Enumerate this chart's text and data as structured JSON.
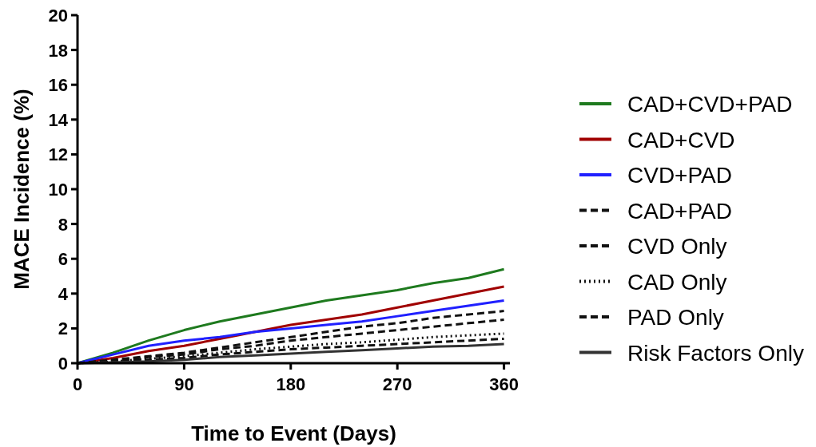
{
  "chart_data": {
    "type": "line",
    "xlabel": "Time to Event (Days)",
    "ylabel": "MACE Incidence (%)",
    "x": [
      0,
      30,
      60,
      90,
      120,
      150,
      180,
      210,
      240,
      270,
      300,
      330,
      360
    ],
    "xlim": [
      0,
      365
    ],
    "xticks": [
      0,
      90,
      180,
      270,
      360
    ],
    "ylim": [
      0,
      20
    ],
    "yticks": [
      0,
      2,
      4,
      6,
      8,
      10,
      12,
      14,
      16,
      18,
      20
    ],
    "grid": false,
    "legend": "right",
    "marker": "none",
    "series": [
      {
        "name": "CAD+CVD+PAD",
        "color": "#1e7a1e",
        "line_style": "solid",
        "values": [
          0,
          0.6,
          1.3,
          1.9,
          2.4,
          2.8,
          3.2,
          3.6,
          3.9,
          4.2,
          4.6,
          4.9,
          5.4
        ]
      },
      {
        "name": "CAD+CVD",
        "color": "#a00000",
        "line_style": "solid",
        "values": [
          0,
          0.3,
          0.7,
          1.0,
          1.4,
          1.8,
          2.2,
          2.5,
          2.8,
          3.2,
          3.6,
          4.0,
          4.4
        ]
      },
      {
        "name": "CVD+PAD",
        "color": "#2020ff",
        "line_style": "solid",
        "values": [
          0,
          0.5,
          1.0,
          1.3,
          1.5,
          1.8,
          2.0,
          2.2,
          2.4,
          2.7,
          3.0,
          3.3,
          3.6
        ]
      },
      {
        "name": "CAD+PAD",
        "color": "#111111",
        "line_style": "dashed",
        "values": [
          0,
          0.2,
          0.4,
          0.6,
          0.9,
          1.2,
          1.5,
          1.8,
          2.1,
          2.3,
          2.6,
          2.8,
          3.0
        ]
      },
      {
        "name": "CVD Only",
        "color": "#111111",
        "line_style": "dashed",
        "values": [
          0,
          0.15,
          0.35,
          0.5,
          0.8,
          1.0,
          1.3,
          1.5,
          1.7,
          1.9,
          2.1,
          2.3,
          2.5
        ]
      },
      {
        "name": "CAD Only",
        "color": "#111111",
        "line_style": "dotted",
        "values": [
          0,
          0.1,
          0.25,
          0.4,
          0.6,
          0.8,
          0.95,
          1.1,
          1.2,
          1.35,
          1.5,
          1.6,
          1.7
        ]
      },
      {
        "name": "PAD Only",
        "color": "#111111",
        "line_style": "dashed",
        "values": [
          0,
          0.1,
          0.2,
          0.3,
          0.5,
          0.65,
          0.8,
          0.9,
          1.0,
          1.1,
          1.2,
          1.3,
          1.4
        ]
      },
      {
        "name": "Risk Factors Only",
        "color": "#333333",
        "line_style": "solid",
        "values": [
          0,
          0.05,
          0.1,
          0.2,
          0.35,
          0.45,
          0.55,
          0.65,
          0.75,
          0.85,
          0.95,
          1.0,
          1.1
        ]
      }
    ]
  }
}
